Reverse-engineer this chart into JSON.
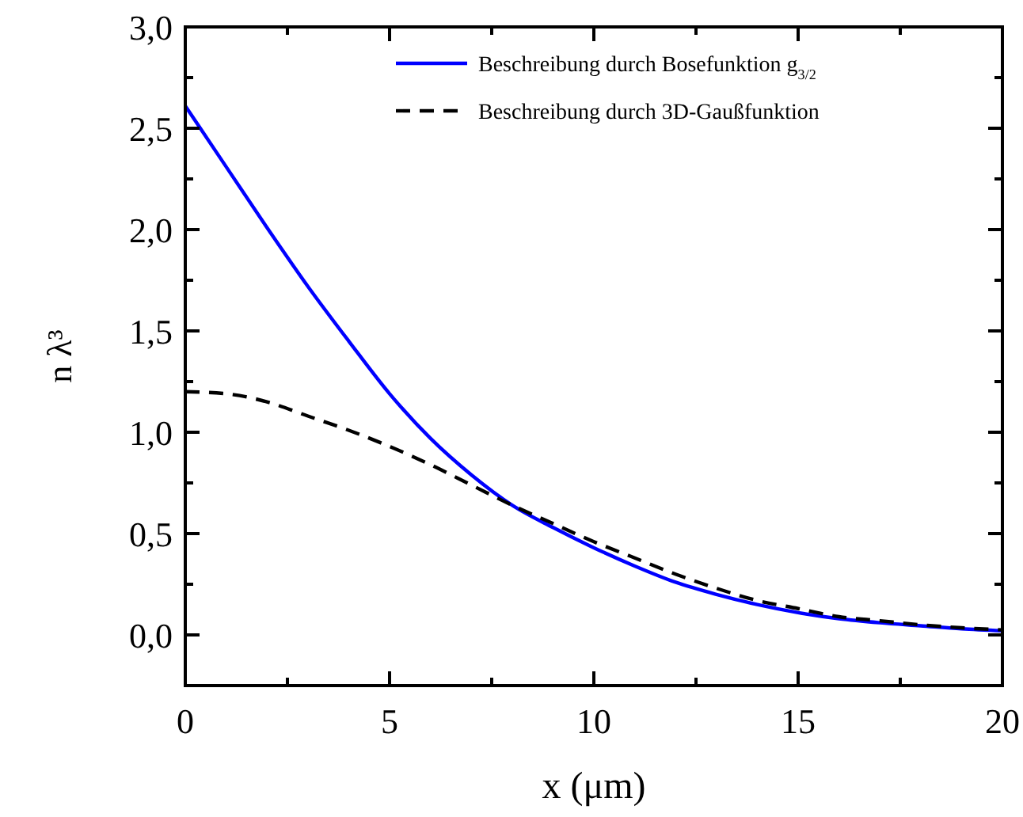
{
  "chart_data": {
    "type": "line",
    "xlabel": "x (μm)",
    "ylabel": "n λ³",
    "x": [
      0,
      1,
      2,
      3,
      4,
      5,
      6,
      7,
      8,
      9,
      10,
      11,
      12,
      13,
      14,
      15,
      16,
      17,
      18,
      19,
      20
    ],
    "series": [
      {
        "name": "Beschreibung durch Bosefunktion g$_{3/2}$",
        "color": "#0000ff",
        "line_style": "solid",
        "values": [
          2.61,
          2.31,
          2.01,
          1.72,
          1.45,
          1.19,
          0.97,
          0.79,
          0.64,
          0.53,
          0.43,
          0.34,
          0.26,
          0.2,
          0.15,
          0.11,
          0.08,
          0.06,
          0.045,
          0.03,
          0.02
        ]
      },
      {
        "name": "Beschreibung durch 3D-Gaußfunktion",
        "color": "#000000",
        "line_style": "dashed",
        "values": [
          1.2,
          1.19,
          1.15,
          1.08,
          1.01,
          0.93,
          0.84,
          0.74,
          0.64,
          0.55,
          0.46,
          0.38,
          0.3,
          0.23,
          0.17,
          0.13,
          0.09,
          0.07,
          0.05,
          0.035,
          0.025
        ]
      }
    ],
    "xlim": [
      0,
      20
    ],
    "ylim": [
      -0.25,
      3.0
    ],
    "xticks": [
      0,
      {
        "value": 2.5,
        "label": null
      },
      5,
      {
        "value": 7.5,
        "label": null
      },
      10,
      {
        "value": 12.5,
        "label": null
      },
      15,
      {
        "value": 17.5,
        "label": null
      },
      20
    ],
    "yticks": [
      {
        "value": 0,
        "label": "0,0"
      },
      {
        "value": 0.25,
        "label": null
      },
      {
        "value": 0.5,
        "label": "0,5"
      },
      {
        "value": 0.75,
        "label": null
      },
      {
        "value": 1,
        "label": "1,0"
      },
      {
        "value": 1.25,
        "label": null
      },
      {
        "value": 1.5,
        "label": "1,5"
      },
      {
        "value": 1.75,
        "label": null
      },
      {
        "value": 2,
        "label": "2,0"
      },
      {
        "value": 2.25,
        "label": null
      },
      {
        "value": 2.5,
        "label": "2,5"
      },
      {
        "value": 2.75,
        "label": null
      },
      {
        "value": 3,
        "label": "3,0"
      }
    ],
    "grid": false,
    "legend": "top right"
  }
}
